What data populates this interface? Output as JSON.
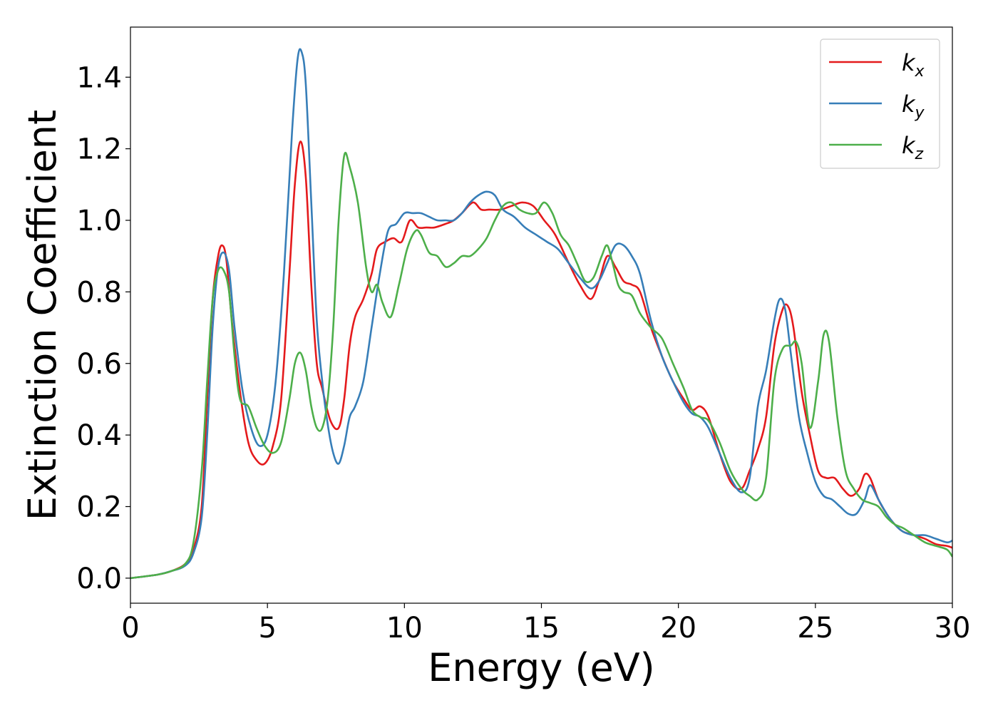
{
  "chart_data": {
    "type": "line",
    "xlabel": "Energy (eV)",
    "ylabel": "Extinction Coefficient",
    "xlim": [
      0,
      30
    ],
    "ylim": [
      -0.07,
      1.54
    ],
    "xticks": [
      0,
      5,
      10,
      15,
      20,
      25,
      30
    ],
    "yticks": [
      0.0,
      0.2,
      0.4,
      0.6,
      0.8,
      1.0,
      1.2,
      1.4
    ],
    "xtick_labels": [
      "0",
      "5",
      "10",
      "15",
      "20",
      "25",
      "30"
    ],
    "ytick_labels": [
      "0.0",
      "0.2",
      "0.4",
      "0.6",
      "0.8",
      "1.0",
      "1.2",
      "1.4"
    ],
    "grid": false,
    "legend_position": "top-right",
    "series": [
      {
        "name": "k_x",
        "label_main": "k",
        "label_sub": "x",
        "color": "#e41a1c",
        "x": [
          0,
          1,
          1.5,
          2,
          2.3,
          2.6,
          2.8,
          3.0,
          3.2,
          3.35,
          3.5,
          3.7,
          4.0,
          4.3,
          4.6,
          4.9,
          5.2,
          5.5,
          5.8,
          6.0,
          6.2,
          6.4,
          6.6,
          6.8,
          7.0,
          7.3,
          7.6,
          7.8,
          8.0,
          8.2,
          8.5,
          8.8,
          9.0,
          9.3,
          9.6,
          9.9,
          10.2,
          10.5,
          10.8,
          11.1,
          11.5,
          11.8,
          12.1,
          12.5,
          12.8,
          13.1,
          13.5,
          13.9,
          14.3,
          14.7,
          15.1,
          15.5,
          16.0,
          16.4,
          16.8,
          17.1,
          17.4,
          17.7,
          18.0,
          18.3,
          18.6,
          19.0,
          19.4,
          19.8,
          20.2,
          20.5,
          20.8,
          21.1,
          21.5,
          21.9,
          22.3,
          22.6,
          22.9,
          23.2,
          23.5,
          23.8,
          24.0,
          24.2,
          24.5,
          24.8,
          25.1,
          25.4,
          25.7,
          26.0,
          26.3,
          26.6,
          26.8,
          27.0,
          27.3,
          27.6,
          27.9,
          28.2,
          28.6,
          29.0,
          29.4,
          29.8,
          30.0
        ],
        "values": [
          0.0,
          0.01,
          0.02,
          0.04,
          0.08,
          0.2,
          0.5,
          0.78,
          0.9,
          0.93,
          0.89,
          0.72,
          0.52,
          0.38,
          0.33,
          0.32,
          0.37,
          0.5,
          0.85,
          1.1,
          1.22,
          1.12,
          0.82,
          0.6,
          0.53,
          0.44,
          0.42,
          0.5,
          0.65,
          0.73,
          0.78,
          0.85,
          0.92,
          0.94,
          0.95,
          0.94,
          1.0,
          0.98,
          0.98,
          0.98,
          0.99,
          1.0,
          1.02,
          1.05,
          1.03,
          1.03,
          1.03,
          1.04,
          1.05,
          1.04,
          1.0,
          0.96,
          0.88,
          0.82,
          0.78,
          0.83,
          0.9,
          0.87,
          0.83,
          0.82,
          0.8,
          0.7,
          0.62,
          0.55,
          0.5,
          0.47,
          0.48,
          0.45,
          0.35,
          0.27,
          0.25,
          0.3,
          0.36,
          0.45,
          0.65,
          0.75,
          0.76,
          0.7,
          0.52,
          0.4,
          0.3,
          0.28,
          0.28,
          0.25,
          0.23,
          0.25,
          0.29,
          0.28,
          0.22,
          0.18,
          0.15,
          0.13,
          0.12,
          0.11,
          0.095,
          0.09,
          0.085
        ]
      },
      {
        "name": "k_y",
        "label_main": "k",
        "label_sub": "y",
        "color": "#377eb8",
        "x": [
          0,
          1,
          1.5,
          2,
          2.3,
          2.6,
          2.8,
          3.0,
          3.2,
          3.4,
          3.6,
          3.8,
          4.1,
          4.4,
          4.7,
          5.0,
          5.3,
          5.6,
          5.9,
          6.1,
          6.25,
          6.4,
          6.6,
          6.8,
          7.0,
          7.2,
          7.4,
          7.6,
          7.8,
          8.0,
          8.2,
          8.5,
          8.8,
          9.1,
          9.4,
          9.7,
          10.0,
          10.3,
          10.6,
          10.9,
          11.2,
          11.5,
          11.8,
          12.1,
          12.4,
          12.7,
          13.0,
          13.3,
          13.6,
          14.0,
          14.4,
          14.8,
          15.2,
          15.6,
          16.0,
          16.4,
          16.8,
          17.1,
          17.4,
          17.7,
          18.0,
          18.3,
          18.6,
          19.0,
          19.4,
          19.8,
          20.2,
          20.5,
          20.8,
          21.1,
          21.5,
          21.9,
          22.3,
          22.6,
          22.9,
          23.2,
          23.5,
          23.7,
          23.9,
          24.1,
          24.4,
          24.7,
          25.0,
          25.3,
          25.6,
          25.9,
          26.2,
          26.5,
          26.8,
          27.0,
          27.3,
          27.6,
          27.9,
          28.2,
          28.6,
          29.0,
          29.4,
          29.8,
          30.0
        ],
        "values": [
          0.0,
          0.01,
          0.02,
          0.035,
          0.07,
          0.17,
          0.4,
          0.7,
          0.87,
          0.91,
          0.86,
          0.7,
          0.52,
          0.42,
          0.37,
          0.4,
          0.55,
          0.85,
          1.25,
          1.45,
          1.47,
          1.38,
          1.05,
          0.72,
          0.55,
          0.43,
          0.35,
          0.32,
          0.37,
          0.45,
          0.48,
          0.55,
          0.7,
          0.85,
          0.97,
          0.99,
          1.02,
          1.02,
          1.02,
          1.01,
          1.0,
          1.0,
          1.0,
          1.02,
          1.05,
          1.07,
          1.08,
          1.07,
          1.03,
          1.01,
          0.98,
          0.96,
          0.94,
          0.92,
          0.88,
          0.84,
          0.81,
          0.83,
          0.88,
          0.93,
          0.93,
          0.9,
          0.85,
          0.72,
          0.62,
          0.55,
          0.49,
          0.46,
          0.45,
          0.42,
          0.35,
          0.28,
          0.24,
          0.28,
          0.48,
          0.58,
          0.72,
          0.78,
          0.75,
          0.63,
          0.45,
          0.35,
          0.27,
          0.23,
          0.22,
          0.2,
          0.18,
          0.18,
          0.22,
          0.26,
          0.22,
          0.18,
          0.15,
          0.13,
          0.12,
          0.12,
          0.11,
          0.1,
          0.105
        ]
      },
      {
        "name": "k_z",
        "label_main": "k",
        "label_sub": "z",
        "color": "#4daf4a",
        "x": [
          0,
          1,
          1.5,
          2,
          2.3,
          2.6,
          2.8,
          3.0,
          3.2,
          3.4,
          3.6,
          3.8,
          4.0,
          4.3,
          4.6,
          4.9,
          5.2,
          5.5,
          5.8,
          6.0,
          6.2,
          6.4,
          6.6,
          6.8,
          7.0,
          7.2,
          7.4,
          7.6,
          7.8,
          8.0,
          8.3,
          8.6,
          8.8,
          9.0,
          9.2,
          9.5,
          9.8,
          10.1,
          10.4,
          10.6,
          10.9,
          11.2,
          11.5,
          11.8,
          12.1,
          12.4,
          12.7,
          13.0,
          13.3,
          13.6,
          13.9,
          14.2,
          14.5,
          14.8,
          15.1,
          15.4,
          15.7,
          16.0,
          16.3,
          16.6,
          16.9,
          17.2,
          17.4,
          17.6,
          17.8,
          18.0,
          18.3,
          18.6,
          19.0,
          19.4,
          19.8,
          20.2,
          20.5,
          20.8,
          21.1,
          21.5,
          21.9,
          22.3,
          22.6,
          22.9,
          23.2,
          23.5,
          23.8,
          24.1,
          24.3,
          24.5,
          24.8,
          25.1,
          25.3,
          25.5,
          25.8,
          26.1,
          26.4,
          26.7,
          27.0,
          27.3,
          27.6,
          27.9,
          28.2,
          28.6,
          29.0,
          29.4,
          29.8,
          30.0
        ],
        "values": [
          0.0,
          0.01,
          0.02,
          0.04,
          0.1,
          0.3,
          0.55,
          0.78,
          0.86,
          0.86,
          0.8,
          0.62,
          0.5,
          0.48,
          0.42,
          0.37,
          0.35,
          0.38,
          0.5,
          0.6,
          0.63,
          0.58,
          0.48,
          0.42,
          0.42,
          0.5,
          0.7,
          1.0,
          1.18,
          1.15,
          1.05,
          0.87,
          0.8,
          0.82,
          0.77,
          0.73,
          0.82,
          0.92,
          0.97,
          0.96,
          0.91,
          0.9,
          0.87,
          0.88,
          0.9,
          0.9,
          0.92,
          0.95,
          1.0,
          1.04,
          1.05,
          1.03,
          1.02,
          1.02,
          1.05,
          1.02,
          0.96,
          0.93,
          0.88,
          0.83,
          0.84,
          0.9,
          0.93,
          0.88,
          0.82,
          0.8,
          0.79,
          0.74,
          0.7,
          0.67,
          0.6,
          0.53,
          0.47,
          0.45,
          0.44,
          0.38,
          0.3,
          0.25,
          0.23,
          0.22,
          0.28,
          0.55,
          0.64,
          0.65,
          0.66,
          0.6,
          0.42,
          0.55,
          0.68,
          0.66,
          0.45,
          0.3,
          0.25,
          0.22,
          0.21,
          0.2,
          0.17,
          0.15,
          0.14,
          0.12,
          0.1,
          0.09,
          0.08,
          0.06
        ]
      }
    ]
  }
}
